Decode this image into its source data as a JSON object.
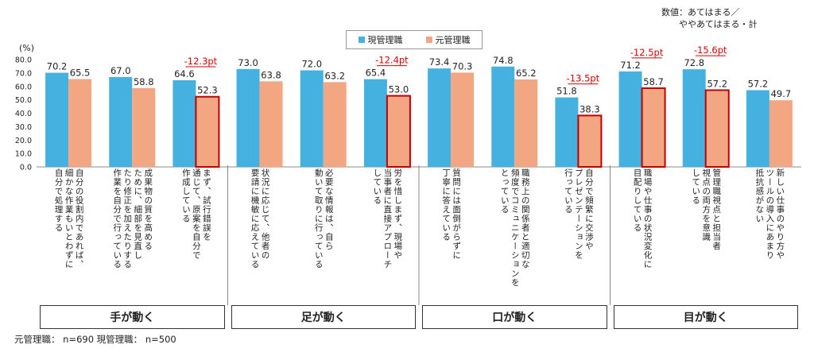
{
  "chart_data": {
    "type": "bar",
    "ylabel": "(%)",
    "ylim": [
      0,
      80
    ],
    "yticks": [
      "0.0",
      "10.0",
      "20.0",
      "30.0",
      "40.0",
      "50.0",
      "60.0",
      "70.0",
      "80.0"
    ],
    "series": [
      {
        "name": "現管理職",
        "color": "#45b1e1",
        "values": [
          70.2,
          67.0,
          64.6,
          73.0,
          72.0,
          65.4,
          73.4,
          74.8,
          51.8,
          71.2,
          72.8,
          57.2
        ]
      },
      {
        "name": "元管理職",
        "color": "#f2a682",
        "values": [
          65.5,
          58.8,
          52.3,
          63.8,
          63.2,
          53.0,
          70.3,
          65.2,
          38.3,
          58.7,
          57.2,
          49.7
        ]
      }
    ],
    "categories": [
      "自分の役割内であれば、\n細かな作業もいとわずに\n自分で処理する",
      "成果物の質を高める\nために、細部を見直し\nたり修正を加えたりする\n作業を自分で行っている",
      "まず、試行錯誤を\n通じて、原案を自分で\n作成している",
      "状況に応じて、他者の\n要請に機敏に応えている",
      "必要な情報は、自ら\n動いて取りに行っている",
      "労を惜しまず、現場や\n当事者に直接アプローチ\nしている",
      "質問には面倒がらずに\n丁寧に答えている",
      "職務上の関係者と適切な\n頻度でコミュニケーションを\nとっている",
      "自分で頻繁に交渉や\nプレゼンテーションを\n行っている",
      "職場や仕事の状況変化に\n目配りしている",
      "管理職視点と担当者\n視点の両方を意識\nしている",
      "新しい仕事のやり方や\nツールの導入にあまり\n抵抗感がない"
    ],
    "highlights": [
      {
        "index": 2,
        "diff": "-12.3pt"
      },
      {
        "index": 5,
        "diff": "-12.4pt"
      },
      {
        "index": 8,
        "diff": "-13.5pt"
      },
      {
        "index": 9,
        "diff": "-12.5pt"
      },
      {
        "index": 10,
        "diff": "-15.6pt"
      }
    ],
    "groups": [
      {
        "label": "手が動く",
        "count": 3
      },
      {
        "label": "足が動く",
        "count": 3
      },
      {
        "label": "口が動く",
        "count": 3
      },
      {
        "label": "目が動く",
        "count": 3
      }
    ],
    "highlight_color": "#c00000"
  },
  "legend": {
    "current": "現管理職",
    "former": "元管理職"
  },
  "note": {
    "line1": "数値：あてはまる／",
    "line2": "ややあてはまる・計"
  },
  "footer": "元管理職：  n=690  現管理職：  n=500"
}
